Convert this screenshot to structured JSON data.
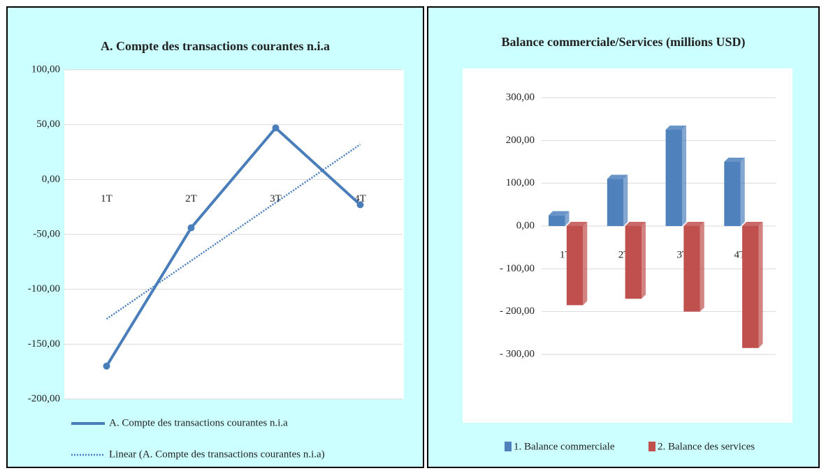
{
  "chart_data": [
    {
      "type": "line",
      "title": "A. Compte des transactions courantes n.i.a",
      "categories": [
        "1T",
        "2T",
        "3T",
        "4T"
      ],
      "series": [
        {
          "name": "A. Compte des transactions courantes n.i.a",
          "color": "#4a7ebb",
          "style": "solid",
          "values": [
            -170,
            -44,
            47,
            -23
          ]
        },
        {
          "name": "Linear (A. Compte des transactions courantes n.i.a)",
          "color": "#4a7ebb",
          "style": "dotted",
          "values": [
            -127,
            -74,
            -21,
            32
          ]
        }
      ],
      "ylim": [
        -200,
        100
      ],
      "yticks": [
        {
          "value": -200,
          "label": "-200,00"
        },
        {
          "value": -150,
          "label": "-150,00"
        },
        {
          "value": -100,
          "label": "-100,00"
        },
        {
          "value": -50,
          "label": "-50,00"
        },
        {
          "value": 0,
          "label": "0,00"
        },
        {
          "value": 50,
          "label": "50,00"
        },
        {
          "value": 100,
          "label": "100,00"
        }
      ],
      "grid": true,
      "legend": "bottom"
    },
    {
      "type": "bar",
      "title": "Balance commerciale/Services (millions  USD)",
      "categories": [
        "1T18",
        "2T18",
        "3T18",
        "4T 18"
      ],
      "series": [
        {
          "name": "1. Balance commerciale",
          "color": "#4f81bd",
          "values": [
            25,
            110,
            225,
            150
          ]
        },
        {
          "name": "2. Balance des services",
          "color": "#c0504d",
          "values": [
            -185,
            -170,
            -200,
            -285
          ]
        }
      ],
      "ylim": [
        -300,
        300
      ],
      "yticks": [
        {
          "value": -300,
          "label": "- 300,00"
        },
        {
          "value": -200,
          "label": "- 200,00"
        },
        {
          "value": -100,
          "label": "- 100,00"
        },
        {
          "value": 0,
          "label": "0,00"
        },
        {
          "value": 100,
          "label": "100,00"
        },
        {
          "value": 200,
          "label": "200,00"
        },
        {
          "value": 300,
          "label": "300,00"
        }
      ],
      "grid": true,
      "legend": "bottom"
    }
  ]
}
